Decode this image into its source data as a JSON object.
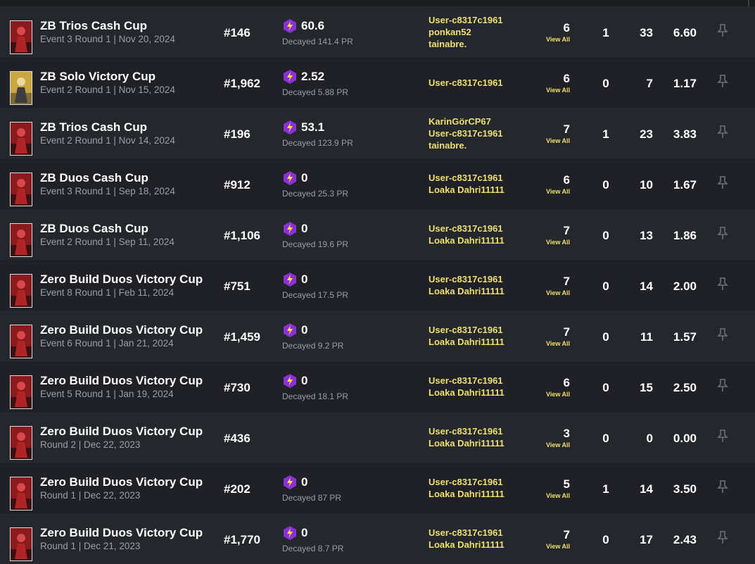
{
  "rows": [
    {
      "title": "ZB Trios Cash Cup",
      "subtitle": "Event 3 Round 1 | Nov 20, 2024",
      "rank": "#146",
      "pr": "60.6",
      "decayed": "Decayed 141.4 PR",
      "players": [
        "User-c8317c1961",
        "ponkan52",
        "tainabre."
      ],
      "matches": 6,
      "view_all": "View All",
      "wins": 1,
      "elims": 33,
      "ratio": "6.60"
    },
    {
      "title": "ZB Solo Victory Cup",
      "subtitle": "Event 2 Round 1 | Nov 15, 2024",
      "rank": "#1,962",
      "pr": "2.52",
      "decayed": "Decayed 5.88 PR",
      "players": [
        "User-c8317c1961"
      ],
      "matches": 6,
      "view_all": "View All",
      "wins": 0,
      "elims": 7,
      "ratio": "1.17"
    },
    {
      "title": "ZB Trios Cash Cup",
      "subtitle": "Event 2 Round 1 | Nov 14, 2024",
      "rank": "#196",
      "pr": "53.1",
      "decayed": "Decayed 123.9 PR",
      "players": [
        "KarinGörCP67",
        "User-c8317c1961",
        "tainabre."
      ],
      "matches": 7,
      "view_all": "View All",
      "wins": 1,
      "elims": 23,
      "ratio": "3.83"
    },
    {
      "title": "ZB Duos Cash Cup",
      "subtitle": "Event 3 Round 1 | Sep 18, 2024",
      "rank": "#912",
      "pr": "0",
      "decayed": "Decayed 25.3 PR",
      "players": [
        "User-c8317c1961",
        "Loaka Dahri11111"
      ],
      "matches": 6,
      "view_all": "View All",
      "wins": 0,
      "elims": 10,
      "ratio": "1.67"
    },
    {
      "title": "ZB Duos Cash Cup",
      "subtitle": "Event 2 Round 1 | Sep 11, 2024",
      "rank": "#1,106",
      "pr": "0",
      "decayed": "Decayed 19.6 PR",
      "players": [
        "User-c8317c1961",
        "Loaka Dahri11111"
      ],
      "matches": 7,
      "view_all": "View All",
      "wins": 0,
      "elims": 13,
      "ratio": "1.86"
    },
    {
      "title": "Zero Build Duos Victory Cup",
      "subtitle": "Event 8 Round 1 | Feb 11, 2024",
      "rank": "#751",
      "pr": "0",
      "decayed": "Decayed 17.5 PR",
      "players": [
        "User-c8317c1961",
        "Loaka Dahri11111"
      ],
      "matches": 7,
      "view_all": "View All",
      "wins": 0,
      "elims": 14,
      "ratio": "2.00"
    },
    {
      "title": "Zero Build Duos Victory Cup",
      "subtitle": "Event 6 Round 1 | Jan 21, 2024",
      "rank": "#1,459",
      "pr": "0",
      "decayed": "Decayed 9.2 PR",
      "players": [
        "User-c8317c1961",
        "Loaka Dahri11111"
      ],
      "matches": 7,
      "view_all": "View All",
      "wins": 0,
      "elims": 11,
      "ratio": "1.57"
    },
    {
      "title": "Zero Build Duos Victory Cup",
      "subtitle": "Event 5 Round 1 | Jan 19, 2024",
      "rank": "#730",
      "pr": "0",
      "decayed": "Decayed 18.1 PR",
      "players": [
        "User-c8317c1961",
        "Loaka Dahri11111"
      ],
      "matches": 6,
      "view_all": "View All",
      "wins": 0,
      "elims": 15,
      "ratio": "2.50"
    },
    {
      "title": "Zero Build Duos Victory Cup",
      "subtitle": "Round 2 | Dec 22, 2023",
      "rank": "#436",
      "players": [
        "User-c8317c1961",
        "Loaka Dahri11111"
      ],
      "matches": 3,
      "view_all": "View All",
      "wins": 0,
      "elims": 0,
      "ratio": "0.00"
    },
    {
      "title": "Zero Build Duos Victory Cup",
      "subtitle": "Round 1 | Dec 22, 2023",
      "rank": "#202",
      "pr": "0",
      "decayed": "Decayed 87 PR",
      "players": [
        "User-c8317c1961",
        "Loaka Dahri11111"
      ],
      "matches": 5,
      "view_all": "View All",
      "wins": 1,
      "elims": 14,
      "ratio": "3.50"
    },
    {
      "title": "Zero Build Duos Victory Cup",
      "subtitle": "Round 1 | Dec 21, 2023",
      "rank": "#1,770",
      "pr": "0",
      "decayed": "Decayed 8.7 PR",
      "players": [
        "User-c8317c1961",
        "Loaka Dahri11111"
      ],
      "matches": 7,
      "view_all": "View All",
      "wins": 0,
      "elims": 17,
      "ratio": "2.43"
    }
  ]
}
